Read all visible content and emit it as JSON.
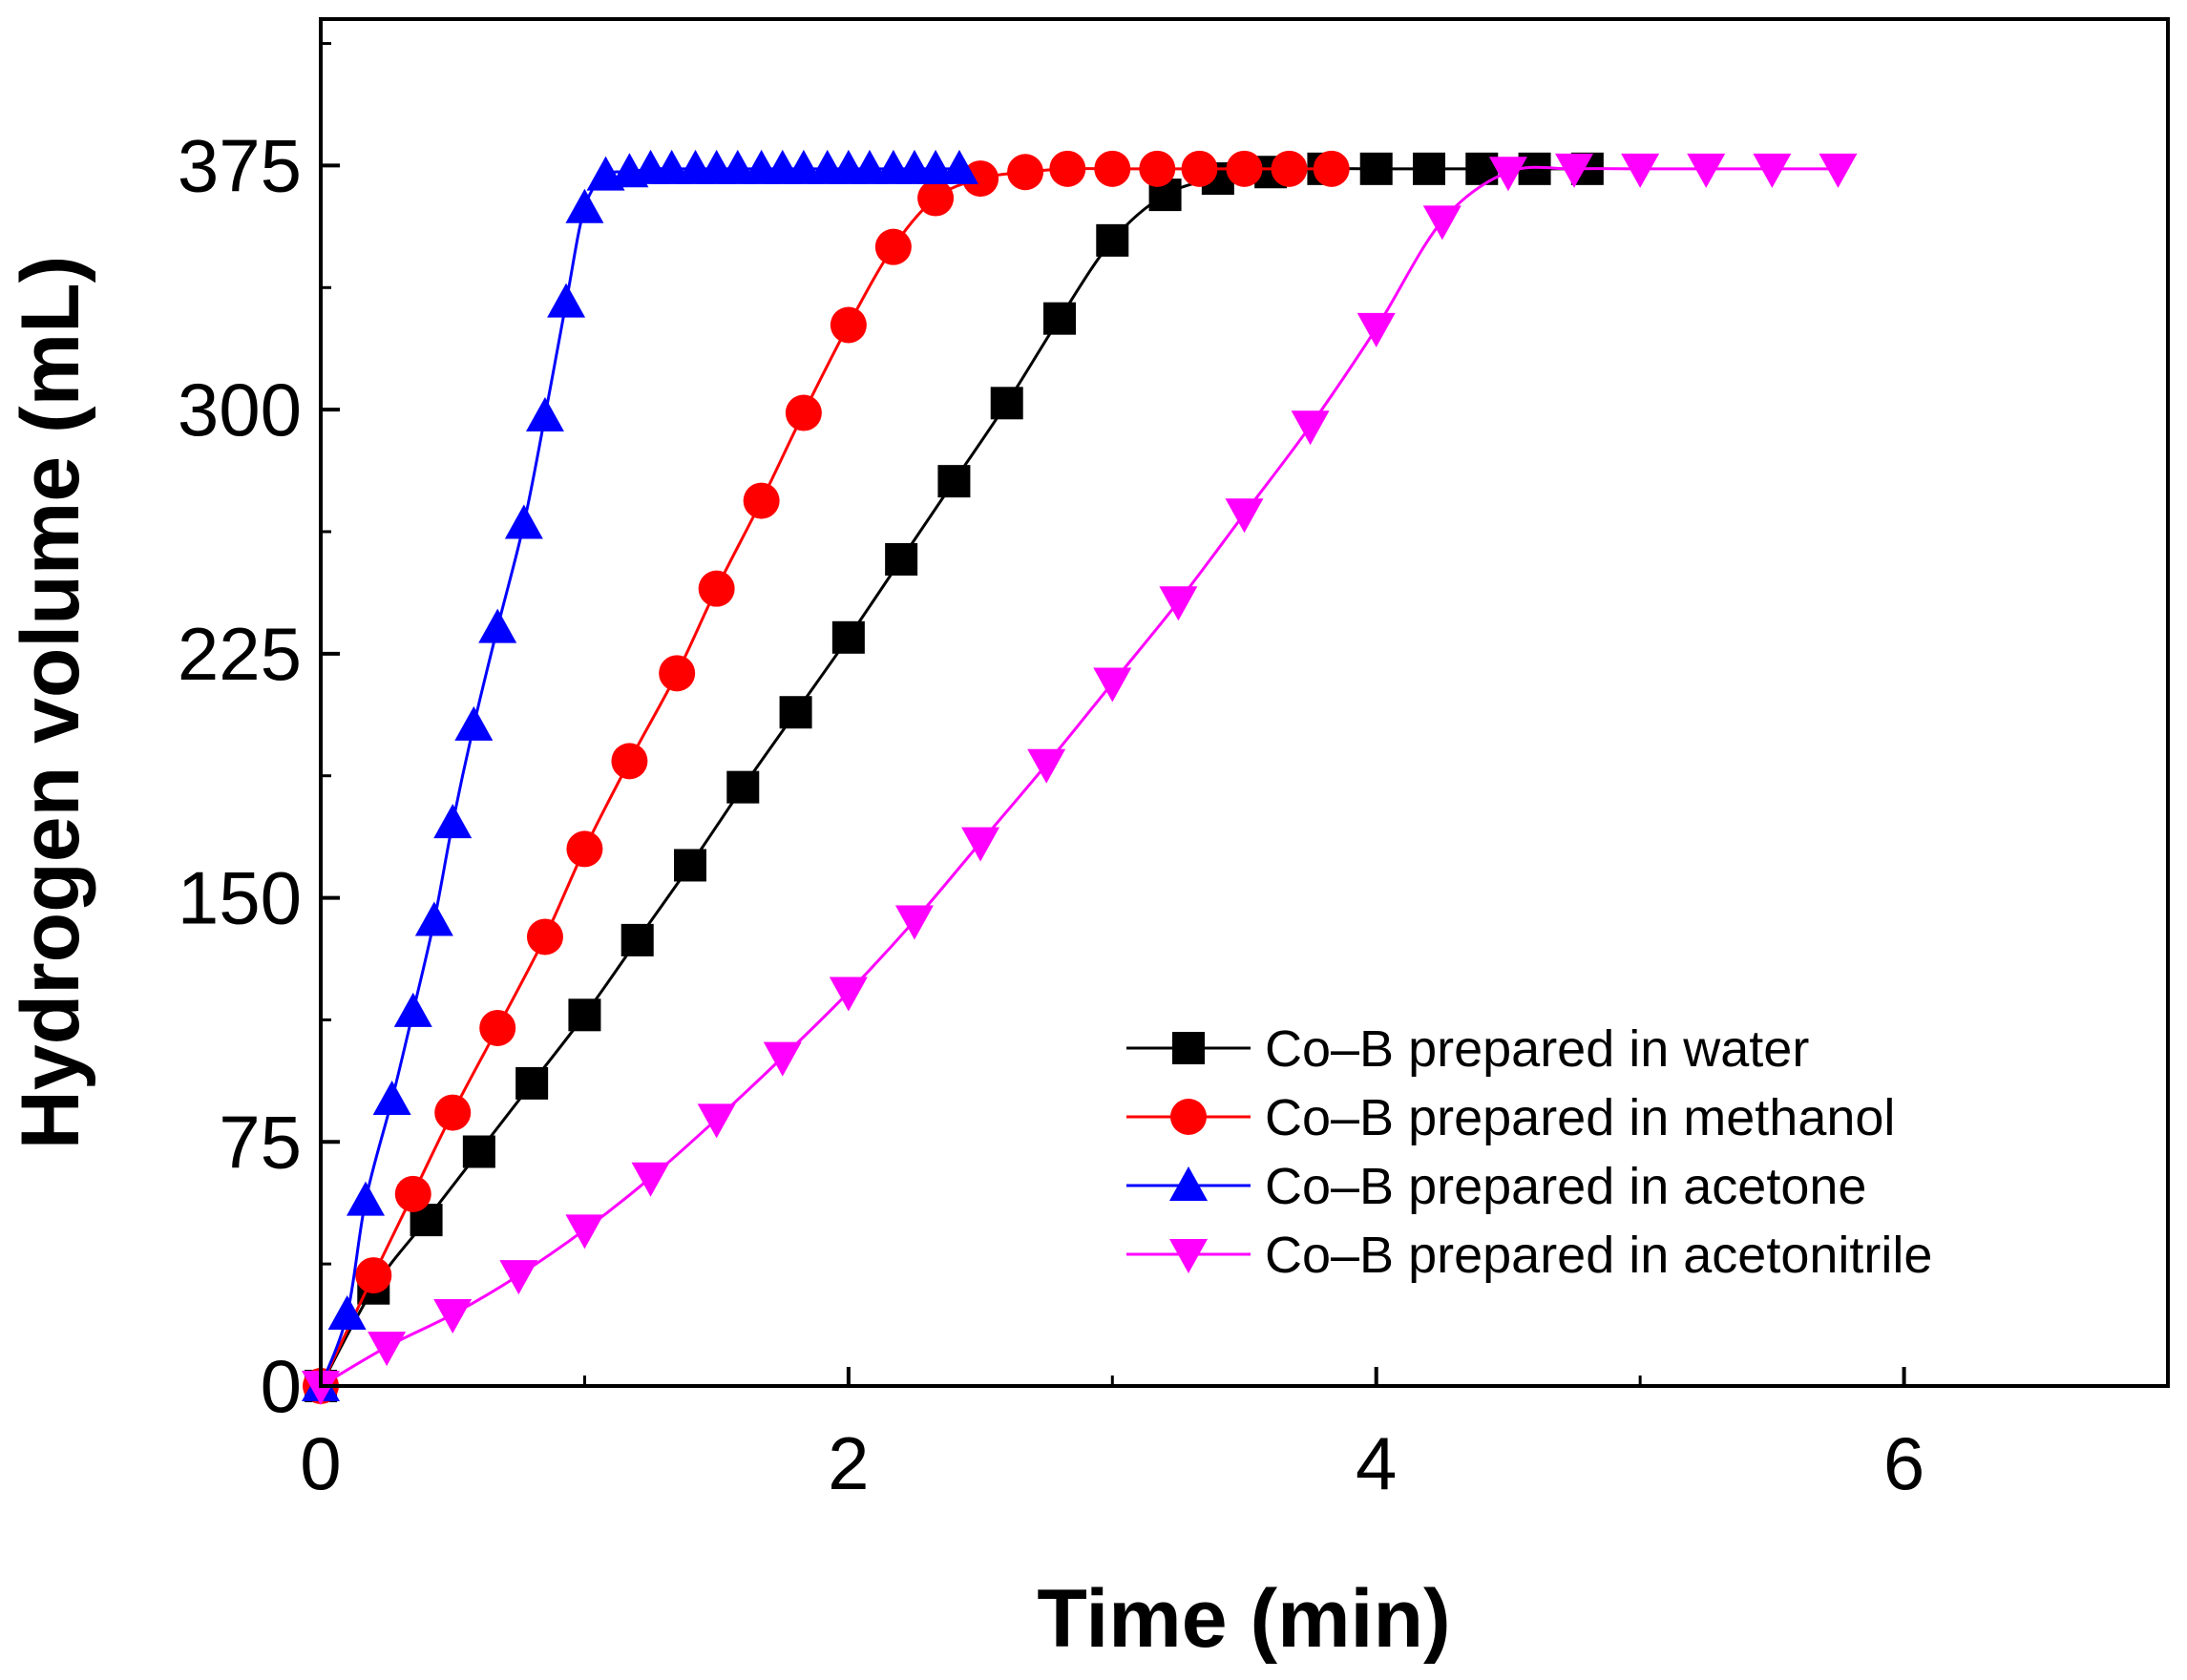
{
  "chart_data": {
    "type": "line",
    "xlabel": "Time (min)",
    "ylabel": "Hydrogen volume (mL)",
    "xlim": [
      0,
      7
    ],
    "ylim": [
      0,
      420
    ],
    "xticks": [
      0,
      2,
      4,
      6
    ],
    "yticks": [
      0,
      75,
      150,
      225,
      300,
      375
    ],
    "grid": false,
    "legend_position": "bottom-right",
    "series": [
      {
        "name": "Co–B prepared in water",
        "color": "#000000",
        "marker": "square",
        "x": [
          0,
          0.2,
          0.4,
          0.6,
          0.8,
          1.0,
          1.2,
          1.4,
          1.6,
          1.8,
          2.0,
          2.2,
          2.4,
          2.6,
          2.8,
          3.0,
          3.2,
          3.4,
          3.6,
          3.8,
          4.0,
          4.2,
          4.4,
          4.6,
          4.8
        ],
        "y": [
          0,
          30,
          51,
          72,
          93,
          114,
          137,
          160,
          184,
          207,
          230,
          254,
          278,
          302,
          328,
          352,
          366,
          371,
          373,
          374,
          374,
          374,
          374,
          374,
          374
        ]
      },
      {
        "name": "Co–B prepared in methanol",
        "color": "#ff0000",
        "marker": "circle",
        "x": [
          0,
          0.2,
          0.35,
          0.5,
          0.67,
          0.85,
          1.0,
          1.17,
          1.35,
          1.5,
          1.67,
          1.83,
          2.0,
          2.17,
          2.33,
          2.5,
          2.67,
          2.83,
          3.0,
          3.17,
          3.33,
          3.5,
          3.67,
          3.83
        ],
        "y": [
          0,
          34,
          59,
          84,
          110,
          138,
          165,
          192,
          219,
          245,
          272,
          299,
          326,
          350,
          365,
          371,
          373,
          374,
          374,
          374,
          374,
          374,
          374,
          374
        ]
      },
      {
        "name": "Co–B prepared in acetone",
        "color": "#0000ff",
        "marker": "triangle-up",
        "x": [
          0,
          0.1,
          0.17,
          0.27,
          0.35,
          0.43,
          0.5,
          0.58,
          0.67,
          0.77,
          0.85,
          0.93,
          1.0,
          1.08,
          1.17,
          1.25,
          1.33,
          1.42,
          1.5,
          1.58,
          1.67,
          1.75,
          1.83,
          1.92,
          2.0,
          2.08,
          2.17,
          2.25,
          2.33,
          2.42
        ],
        "y": [
          0,
          22,
          57,
          88,
          115,
          143,
          173,
          203,
          233,
          265,
          298,
          333,
          362,
          372,
          373,
          374,
          374,
          374,
          374,
          374,
          374,
          374,
          374,
          374,
          374,
          374,
          374,
          374,
          374,
          374
        ]
      },
      {
        "name": "Co–B prepared in acetonitrile",
        "color": "#ff00ff",
        "marker": "triangle-down",
        "x": [
          0,
          0.25,
          0.5,
          0.75,
          1.0,
          1.25,
          1.5,
          1.75,
          2.0,
          2.25,
          2.5,
          2.75,
          3.0,
          3.25,
          3.5,
          3.75,
          4.0,
          4.25,
          4.5,
          4.75,
          5.0,
          5.25,
          5.5,
          5.75
        ],
        "y": [
          0,
          12,
          22,
          34,
          48,
          64,
          82,
          101,
          121,
          143,
          167,
          191,
          216,
          241,
          268,
          295,
          325,
          358,
          373,
          374,
          374,
          374,
          374,
          374
        ]
      }
    ]
  }
}
